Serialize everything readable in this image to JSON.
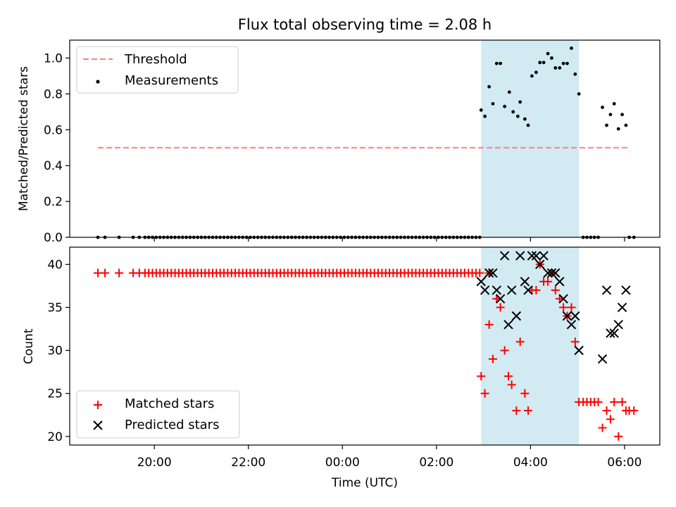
{
  "title": "Flux total observing time = 2.08 h",
  "colors": {
    "threshold": "#ff7f7f",
    "measurements": "#000000",
    "matched": "#ff0000",
    "predicted": "#000000",
    "span": "#add8e6"
  },
  "chart_data": [
    {
      "type": "scatter",
      "ylabel": "Matched/Predicted stars",
      "ylim": [
        0,
        1.1
      ],
      "yticks": [
        0.0,
        0.2,
        0.4,
        0.6,
        0.8,
        1.0
      ],
      "ytick_labels": [
        "0.0",
        "0.2",
        "0.4",
        "0.6",
        "0.8",
        "1.0"
      ],
      "x_unit": "hours since 00:00 UTC (negative = previous day)",
      "xlim": [
        -5.8,
        6.75
      ],
      "grid": false,
      "legend_position": "top-left",
      "shaded_span": [
        2.95,
        5.03
      ],
      "threshold": {
        "name": "Threshold",
        "value": 0.5,
        "x_range": [
          -5.2,
          6.1
        ]
      },
      "measurements": {
        "name": "Measurements",
        "zero_x": [
          -5.2,
          -5.05,
          -4.75,
          -4.45,
          -4.32,
          -4.2,
          -4.12,
          -4.04,
          -3.96,
          -3.88,
          -3.8,
          -3.72,
          -3.64,
          -3.56,
          -3.48,
          -3.4,
          -3.32,
          -3.24,
          -3.16,
          -3.08,
          -3.0,
          -2.92,
          -2.84,
          -2.76,
          -2.68,
          -2.6,
          -2.52,
          -2.44,
          -2.36,
          -2.28,
          -2.2,
          -2.12,
          -2.04,
          -1.96,
          -1.88,
          -1.8,
          -1.72,
          -1.64,
          -1.56,
          -1.48,
          -1.4,
          -1.32,
          -1.24,
          -1.16,
          -1.08,
          -1.0,
          -0.92,
          -0.84,
          -0.76,
          -0.68,
          -0.6,
          -0.52,
          -0.44,
          -0.36,
          -0.28,
          -0.2,
          -0.12,
          -0.04,
          0.04,
          0.12,
          0.2,
          0.28,
          0.36,
          0.44,
          0.52,
          0.6,
          0.68,
          0.76,
          0.84,
          0.92,
          1.0,
          1.08,
          1.16,
          1.24,
          1.32,
          1.4,
          1.48,
          1.56,
          1.64,
          1.72,
          1.8,
          1.88,
          1.96,
          2.04,
          2.12,
          2.2,
          2.28,
          2.36,
          2.44,
          2.52,
          2.6,
          2.68,
          2.76,
          2.84,
          2.92,
          5.12,
          5.2,
          5.28,
          5.36,
          5.44,
          6.1,
          6.2
        ],
        "x": [
          2.95,
          3.03,
          3.12,
          3.2,
          3.28,
          3.36,
          3.45,
          3.55,
          3.63,
          3.73,
          3.78,
          3.88,
          3.95,
          4.03,
          4.12,
          4.2,
          4.28,
          4.37,
          4.45,
          4.53,
          4.62,
          4.7,
          4.78,
          4.87,
          4.95,
          5.03,
          5.53,
          5.62,
          5.7,
          5.78,
          5.87,
          5.95,
          6.03
        ],
        "y": [
          0.71,
          0.675,
          0.84,
          0.745,
          0.97,
          0.97,
          0.73,
          0.81,
          0.7,
          0.675,
          0.755,
          0.66,
          0.625,
          0.9,
          0.92,
          0.975,
          0.975,
          1.025,
          1.0,
          0.945,
          0.945,
          0.97,
          0.97,
          1.055,
          0.91,
          0.8,
          0.725,
          0.625,
          0.685,
          0.745,
          0.605,
          0.685,
          0.625
        ]
      }
    },
    {
      "type": "scatter",
      "ylabel": "Count",
      "xlabel": "Time (UTC)",
      "ylim": [
        19,
        42
      ],
      "yticks": [
        20,
        25,
        30,
        35,
        40
      ],
      "ytick_labels": [
        "20",
        "25",
        "30",
        "35",
        "40"
      ],
      "xticks": [
        -4,
        -2,
        0,
        2,
        4,
        6
      ],
      "xtick_labels": [
        "20:00",
        "22:00",
        "00:00",
        "02:00",
        "04:00",
        "06:00"
      ],
      "xlim": [
        -5.8,
        6.75
      ],
      "grid": false,
      "legend_position": "bottom-left",
      "shaded_span": [
        2.95,
        5.03
      ],
      "series": [
        {
          "name": "Matched stars",
          "marker": "plus",
          "flat_value": 39,
          "flat_x": [
            -5.2,
            -5.05,
            -4.75,
            -4.45,
            -4.32,
            -4.2,
            -4.12,
            -4.04,
            -3.96,
            -3.88,
            -3.8,
            -3.72,
            -3.64,
            -3.56,
            -3.48,
            -3.4,
            -3.32,
            -3.24,
            -3.16,
            -3.08,
            -3.0,
            -2.92,
            -2.84,
            -2.76,
            -2.68,
            -2.6,
            -2.52,
            -2.44,
            -2.36,
            -2.28,
            -2.2,
            -2.12,
            -2.04,
            -1.96,
            -1.88,
            -1.8,
            -1.72,
            -1.64,
            -1.56,
            -1.48,
            -1.4,
            -1.32,
            -1.24,
            -1.16,
            -1.08,
            -1.0,
            -0.92,
            -0.84,
            -0.76,
            -0.68,
            -0.6,
            -0.52,
            -0.44,
            -0.36,
            -0.28,
            -0.2,
            -0.12,
            -0.04,
            0.04,
            0.12,
            0.2,
            0.28,
            0.36,
            0.44,
            0.52,
            0.6,
            0.68,
            0.76,
            0.84,
            0.92,
            1.0,
            1.08,
            1.16,
            1.24,
            1.32,
            1.4,
            1.48,
            1.56,
            1.64,
            1.72,
            1.8,
            1.88,
            1.96,
            2.04,
            2.12,
            2.2,
            2.28,
            2.36,
            2.44,
            2.52,
            2.6,
            2.68,
            2.76,
            2.84,
            2.92,
            3.12
          ],
          "x": [
            2.95,
            3.03,
            3.12,
            3.2,
            3.28,
            3.36,
            3.45,
            3.53,
            3.6,
            3.7,
            3.78,
            3.88,
            3.95,
            4.03,
            4.12,
            4.2,
            4.28,
            4.37,
            4.45,
            4.53,
            4.62,
            4.7,
            4.78,
            4.87,
            4.95,
            5.03,
            5.12,
            5.2,
            5.28,
            5.36,
            5.44,
            5.53,
            5.62,
            5.7,
            5.78,
            5.87,
            5.95,
            6.03,
            6.1,
            6.2
          ],
          "y": [
            27,
            25,
            33,
            29,
            36,
            35,
            30,
            27,
            26,
            23,
            31,
            25,
            23,
            37,
            37,
            40,
            38,
            38,
            39,
            37,
            36,
            35,
            34,
            35,
            31,
            24,
            24,
            24,
            24,
            24,
            24,
            21,
            23,
            22,
            24,
            20,
            24,
            23,
            23,
            23
          ]
        },
        {
          "name": "Predicted stars",
          "marker": "x",
          "x": [
            2.95,
            3.03,
            3.12,
            3.2,
            3.28,
            3.36,
            3.45,
            3.53,
            3.6,
            3.7,
            3.78,
            3.88,
            3.95,
            4.03,
            4.12,
            4.2,
            4.28,
            4.37,
            4.45,
            4.53,
            4.62,
            4.7,
            4.78,
            4.87,
            4.95,
            5.03,
            5.53,
            5.62,
            5.7,
            5.78,
            5.87,
            5.95,
            6.03
          ],
          "y": [
            38,
            37,
            39,
            39,
            37,
            36,
            41,
            33,
            37,
            34,
            41,
            38,
            37,
            41,
            41,
            40,
            41,
            39,
            39,
            39,
            38,
            36,
            34,
            33,
            34,
            30,
            29,
            37,
            32,
            32,
            33,
            35,
            37
          ]
        }
      ]
    }
  ]
}
